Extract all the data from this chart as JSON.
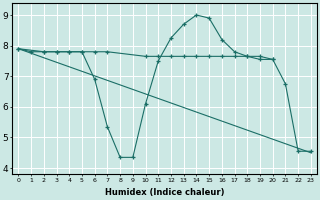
{
  "background_color": "#cce8e4",
  "grid_color": "#ffffff",
  "line_color": "#1a6e66",
  "xlabel": "Humidex (Indice chaleur)",
  "xlim": [
    -0.5,
    23.5
  ],
  "ylim": [
    3.8,
    9.4
  ],
  "xticks": [
    0,
    1,
    2,
    3,
    4,
    5,
    6,
    7,
    8,
    9,
    10,
    11,
    12,
    13,
    14,
    15,
    16,
    17,
    18,
    19,
    20,
    21,
    22,
    23
  ],
  "yticks": [
    4,
    5,
    6,
    7,
    8,
    9
  ],
  "series": [
    {
      "x": [
        0,
        1,
        2,
        3,
        4,
        5,
        6,
        7,
        10,
        11,
        12,
        13,
        14,
        15,
        16,
        17,
        18,
        19,
        20
      ],
      "y": [
        7.9,
        7.8,
        7.8,
        7.8,
        7.8,
        7.8,
        7.8,
        7.8,
        7.65,
        7.65,
        7.65,
        7.65,
        7.65,
        7.65,
        7.65,
        7.65,
        7.65,
        7.65,
        7.55
      ]
    },
    {
      "x": [
        0,
        2,
        3,
        4,
        5,
        6,
        7,
        8,
        9,
        10,
        11,
        12,
        13,
        14,
        15,
        16,
        17,
        18,
        19,
        20,
        21,
        22,
        23
      ],
      "y": [
        7.9,
        7.8,
        7.8,
        7.8,
        7.8,
        6.9,
        5.35,
        4.35,
        4.35,
        6.1,
        7.5,
        8.25,
        8.7,
        9.0,
        8.9,
        8.2,
        7.8,
        7.65,
        7.55,
        7.55,
        6.75,
        4.55,
        4.55
      ]
    },
    {
      "x": [
        0,
        23
      ],
      "y": [
        7.9,
        4.5
      ]
    }
  ]
}
